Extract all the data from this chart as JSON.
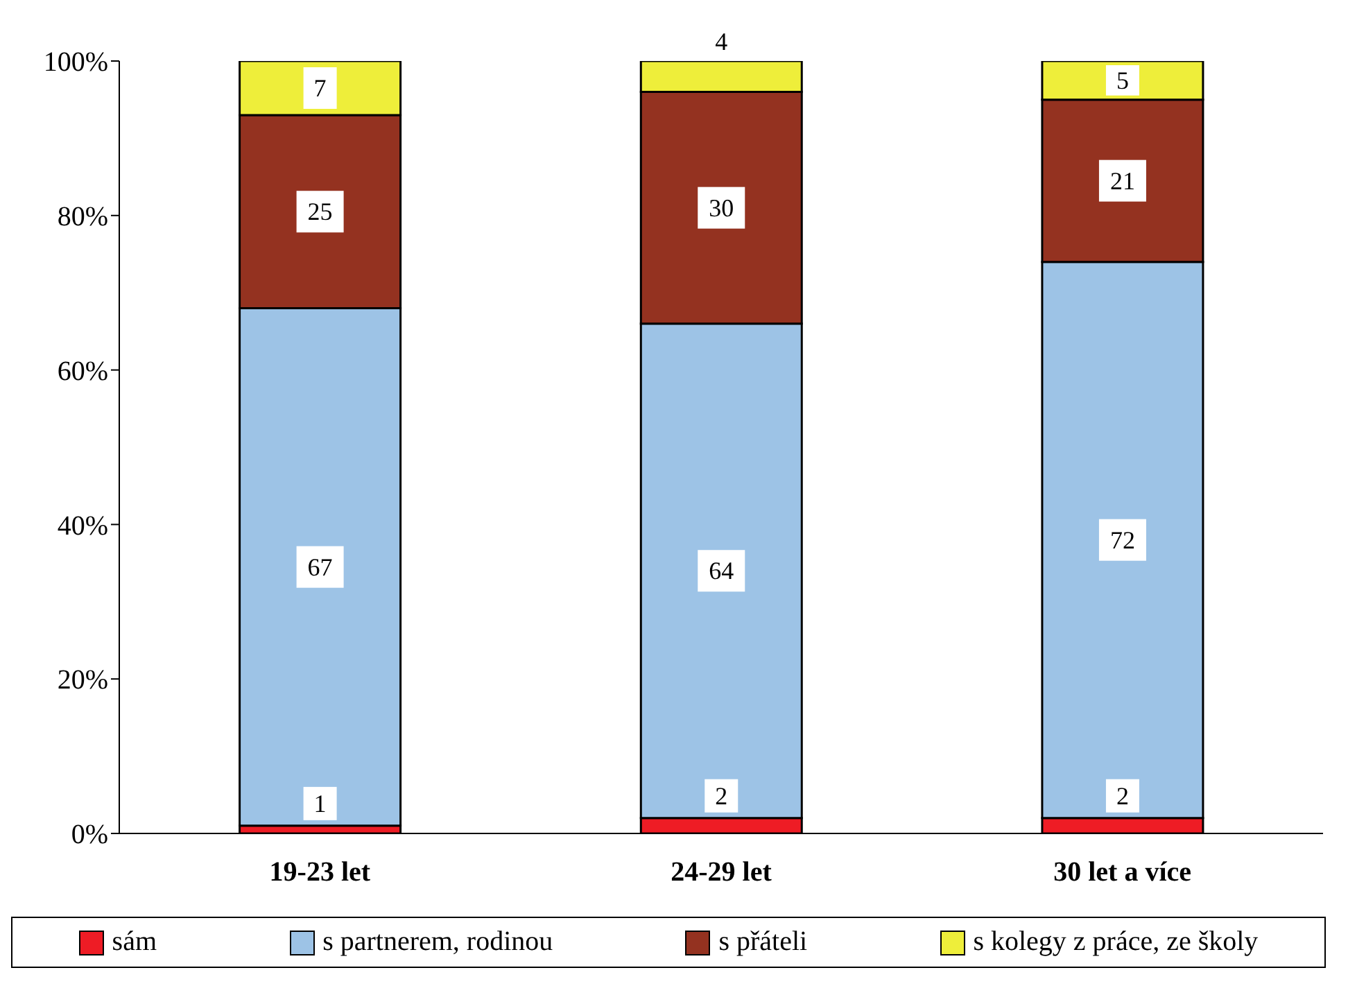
{
  "chart_data": {
    "type": "bar",
    "stacked": true,
    "categories": [
      "19-23 let",
      "24-29 let",
      "30 let a více"
    ],
    "series": [
      {
        "name": "sám",
        "color": "#ee1c25",
        "values": [
          1,
          2,
          2
        ]
      },
      {
        "name": "s partnerem, rodinou",
        "color": "#9dc3e6",
        "values": [
          67,
          64,
          72
        ]
      },
      {
        "name": "s přáteli",
        "color": "#943220",
        "values": [
          25,
          30,
          21
        ]
      },
      {
        "name": "s kolegy z práce, ze školy",
        "color": "#eeee3a",
        "values": [
          7,
          4,
          5
        ]
      }
    ],
    "ylim": [
      0,
      100
    ],
    "yticks": [
      {
        "value": 0,
        "label": "0%"
      },
      {
        "value": 20,
        "label": "20%"
      },
      {
        "value": 40,
        "label": "40%"
      },
      {
        "value": 60,
        "label": "60%"
      },
      {
        "value": 80,
        "label": "80%"
      },
      {
        "value": 100,
        "label": "100%"
      }
    ],
    "grid": false,
    "data_labels": true,
    "legend": "bottom"
  }
}
